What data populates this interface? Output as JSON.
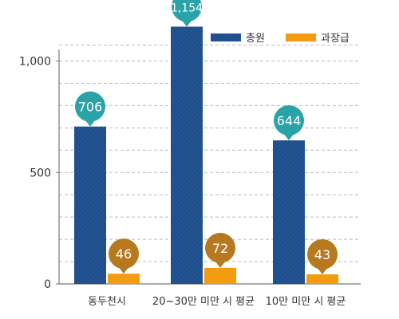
{
  "chart_data": {
    "type": "bar",
    "categories": [
      "동두천시",
      "20~30만 미만 시 평균",
      "10만 미만 시 평균"
    ],
    "series": [
      {
        "name": "총원",
        "values": [
          706,
          1154,
          644
        ],
        "color": "#1f4e8c",
        "bubble_color": "#2aa3a8"
      },
      {
        "name": "과장급",
        "values": [
          46,
          72,
          43
        ],
        "color": "#f39c12",
        "bubble_color": "#b7791f"
      }
    ],
    "value_labels": [
      [
        "706",
        "1,154",
        "644"
      ],
      [
        "46",
        "72",
        "43"
      ]
    ],
    "yticks": [
      {
        "value": 0,
        "label": "0"
      },
      {
        "value": 500,
        "label": "500"
      },
      {
        "value": 1000,
        "label": "1,000"
      }
    ],
    "ylim": [
      0,
      1100
    ],
    "grid": true,
    "legend": "top-right",
    "title": "",
    "xlabel": "",
    "ylabel": ""
  }
}
